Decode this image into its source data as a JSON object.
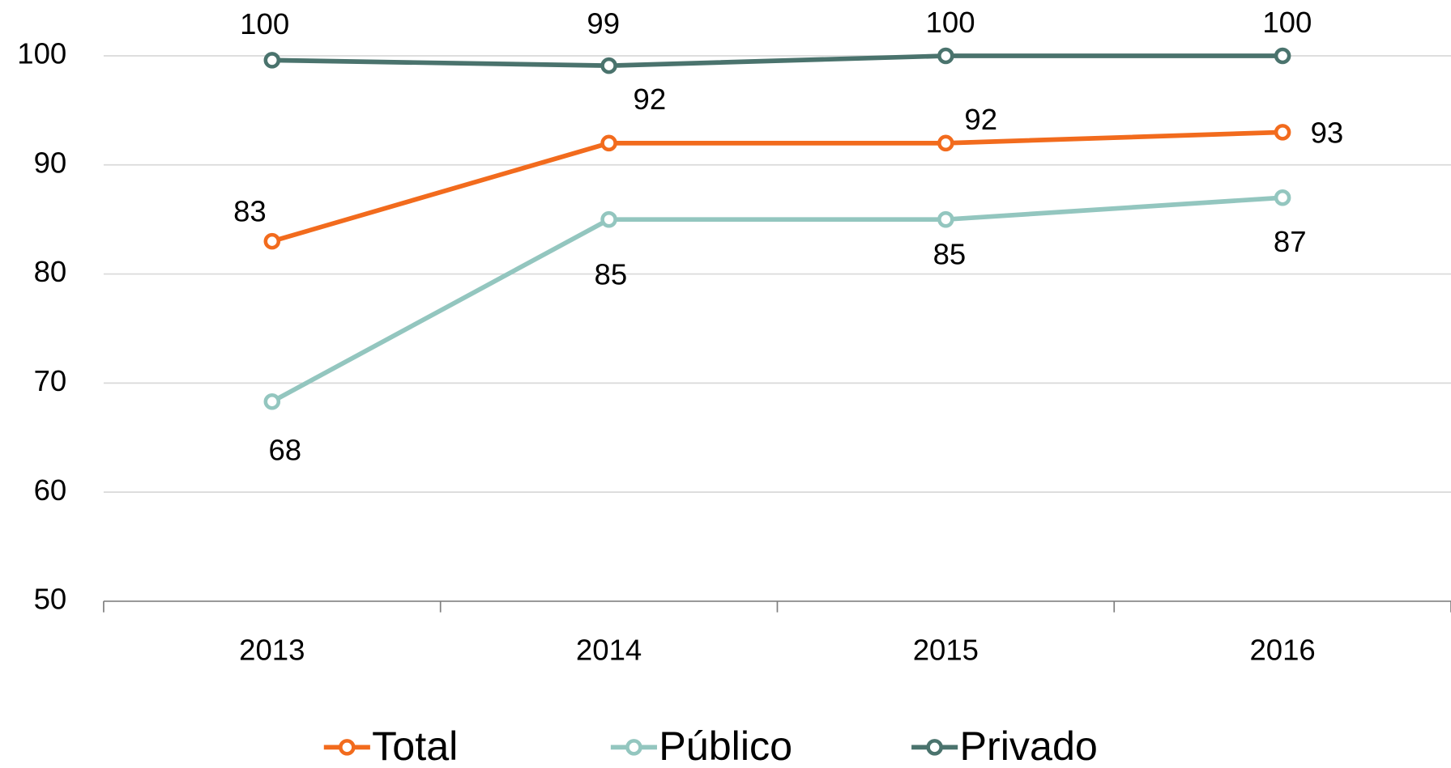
{
  "chart_data": {
    "type": "line",
    "categories": [
      "2013",
      "2014",
      "2015",
      "2016"
    ],
    "series": [
      {
        "name": "Total",
        "color": "#f26b1d",
        "values": [
          83,
          92,
          92,
          93
        ]
      },
      {
        "name": "Público",
        "color": "#93c6bf",
        "values": [
          68.3,
          85,
          85,
          87
        ],
        "value_labels": [
          "68",
          "85",
          "85",
          "87"
        ]
      },
      {
        "name": "Privado",
        "color": "#4a736d",
        "values": [
          99.6,
          99.1,
          100,
          100
        ],
        "value_labels": [
          "100",
          "99",
          "100",
          "100"
        ]
      }
    ],
    "ylim": [
      50,
      100
    ],
    "yticks": [
      50,
      60,
      70,
      80,
      90,
      100
    ],
    "grid": true,
    "legend": "bottom"
  }
}
